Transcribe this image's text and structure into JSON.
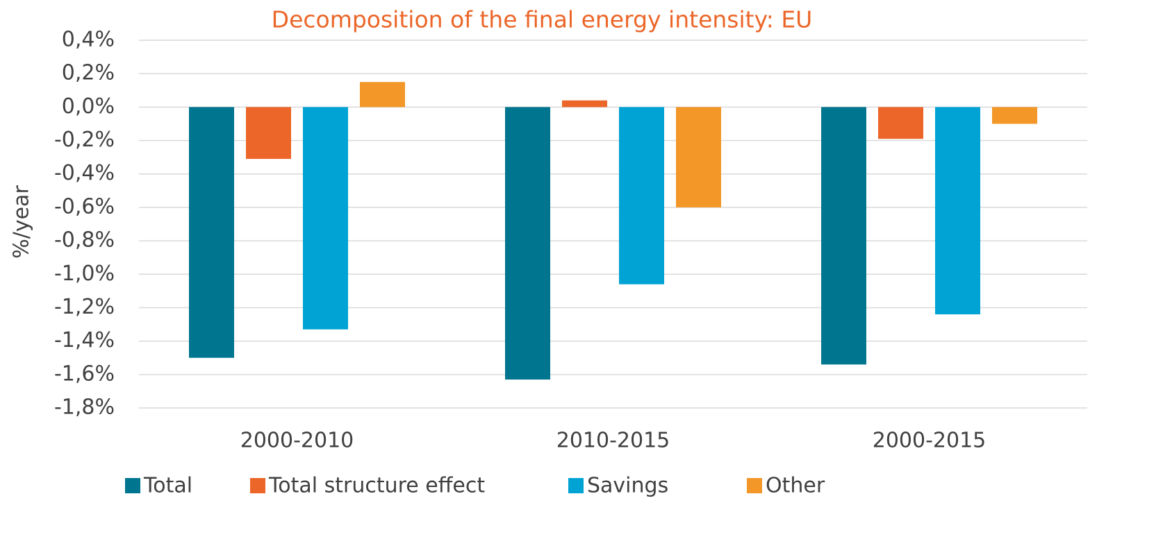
{
  "chart_data": {
    "type": "bar",
    "title": "Decomposition of the final energy intensity: EU",
    "y_label": "%/year",
    "categories": [
      "2000-2010",
      "2010-2015",
      "2000-2015"
    ],
    "series": [
      {
        "name": "Total",
        "color": "#00758f",
        "values": [
          -1.5,
          -1.63,
          -1.54
        ]
      },
      {
        "name": "Total structure effect",
        "color": "#eb6628",
        "values": [
          -0.31,
          0.04,
          -0.19
        ]
      },
      {
        "name": "Savings",
        "color": "#00a3d3",
        "values": [
          -1.33,
          -1.06,
          -1.24
        ]
      },
      {
        "name": "Other",
        "color": "#f29728",
        "values": [
          0.15,
          -0.6,
          -0.1
        ]
      }
    ],
    "ylim": [
      -1.8,
      0.4
    ],
    "yticks": [
      {
        "value": 0.4,
        "label": "0,4%"
      },
      {
        "value": 0.2,
        "label": "0,2%"
      },
      {
        "value": 0.0,
        "label": "0,0%"
      },
      {
        "value": -0.2,
        "label": "-0,2%"
      },
      {
        "value": -0.4,
        "label": "-0,4%"
      },
      {
        "value": -0.6,
        "label": "-0,6%"
      },
      {
        "value": -0.8,
        "label": "-0,8%"
      },
      {
        "value": -1.0,
        "label": "-1,0%"
      },
      {
        "value": -1.2,
        "label": "-1,2%"
      },
      {
        "value": -1.4,
        "label": "-1,4%"
      },
      {
        "value": -1.6,
        "label": "-1,6%"
      },
      {
        "value": -1.8,
        "label": "-1,8%"
      }
    ],
    "grid": true,
    "legend": "bottom"
  }
}
